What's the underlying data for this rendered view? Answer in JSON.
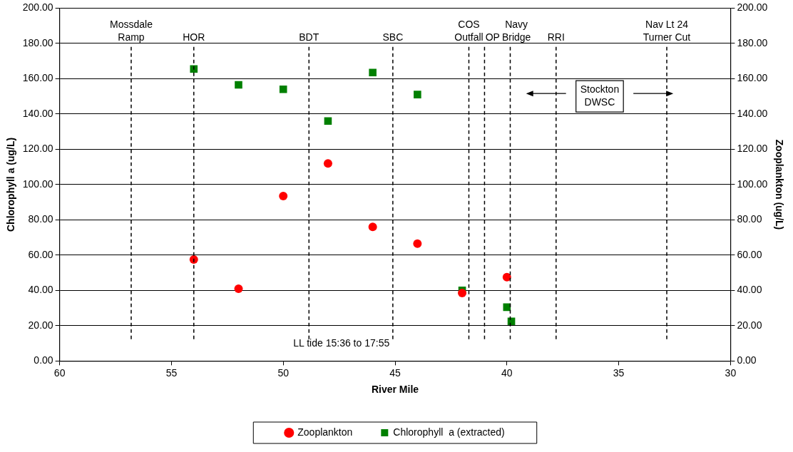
{
  "chart_data": {
    "type": "scatter",
    "xlabel": "River Mile",
    "ylabel": "Chlorophyll a (ug/L)",
    "y2label": "Zooplankton (ug/L)",
    "series": [
      {
        "name": "Chlorophyll  a (extracted)",
        "color": "#008000",
        "marker": "square",
        "x": [
          54,
          52,
          50,
          48,
          46,
          44,
          42,
          40,
          39.8
        ],
        "values": [
          165.5,
          156.5,
          154,
          136,
          163.5,
          151,
          40,
          30.5,
          22.5
        ]
      },
      {
        "name": "Zooplankton",
        "color": "#ff0000",
        "marker": "circle",
        "axis": "y2",
        "x": [
          54,
          52,
          50,
          48,
          46,
          44,
          42,
          40
        ],
        "values": [
          57.5,
          41,
          93.5,
          112,
          76,
          66.5,
          38.5,
          47.5
        ]
      }
    ],
    "xlim": [
      60,
      30
    ],
    "xticks": [
      60,
      55,
      50,
      45,
      40,
      35,
      30
    ],
    "ylim": [
      0,
      200
    ],
    "yticks": [
      {
        "value": 0,
        "label": "0.00"
      },
      {
        "value": 20,
        "label": "20.00"
      },
      {
        "value": 40,
        "label": "40.00"
      },
      {
        "value": 60,
        "label": "60.00"
      },
      {
        "value": 80,
        "label": "80.00"
      },
      {
        "value": 100,
        "label": "100.00"
      },
      {
        "value": 120,
        "label": "120.00"
      },
      {
        "value": 140,
        "label": "140.00"
      },
      {
        "value": 160,
        "label": "160.00"
      },
      {
        "value": 180,
        "label": "180.00"
      },
      {
        "value": 200,
        "label": "200.00"
      }
    ],
    "y2lim": [
      0,
      200
    ],
    "y2ticks": [
      {
        "value": 0,
        "label": "0.00"
      },
      {
        "value": 20,
        "label": "20.00"
      },
      {
        "value": 40,
        "label": "40.00"
      },
      {
        "value": 60,
        "label": "60.00"
      },
      {
        "value": 80,
        "label": "80.00"
      },
      {
        "value": 100,
        "label": "100.00"
      },
      {
        "value": 120,
        "label": "120.00"
      },
      {
        "value": 140,
        "label": "140.00"
      },
      {
        "value": 160,
        "label": "160.00"
      },
      {
        "value": 180,
        "label": "180.00"
      },
      {
        "value": 200,
        "label": "200.00"
      }
    ],
    "ref_lines": [
      {
        "axis": "x",
        "value": 56.8,
        "label": "Mossdale Ramp",
        "line_style": "dashed"
      },
      {
        "axis": "x",
        "value": 54,
        "label": "HOR",
        "line_style": "dashed"
      },
      {
        "axis": "x",
        "value": 48.85,
        "label": "BDT",
        "line_style": "dashed"
      },
      {
        "axis": "x",
        "value": 45.1,
        "label": "SBC",
        "line_style": "dashed"
      },
      {
        "axis": "x",
        "value": 41.7,
        "label": "COS Outfall",
        "line_style": "dashed"
      },
      {
        "axis": "x",
        "value": 41,
        "label": "OP",
        "line_style": "dashed"
      },
      {
        "axis": "x",
        "value": 39.85,
        "label": "Navy Bridge",
        "line_style": "dashed"
      },
      {
        "axis": "x",
        "value": 37.8,
        "label": "RRI",
        "line_style": "dashed"
      },
      {
        "axis": "x",
        "value": 32.85,
        "label": "Nav Lt 24 Turner Cut",
        "line_style": "dashed"
      }
    ],
    "annotations": [
      "Stockton DWSC",
      "LL tide 15:36 to 17:55"
    ],
    "grid": "y",
    "legend": "bottom"
  }
}
